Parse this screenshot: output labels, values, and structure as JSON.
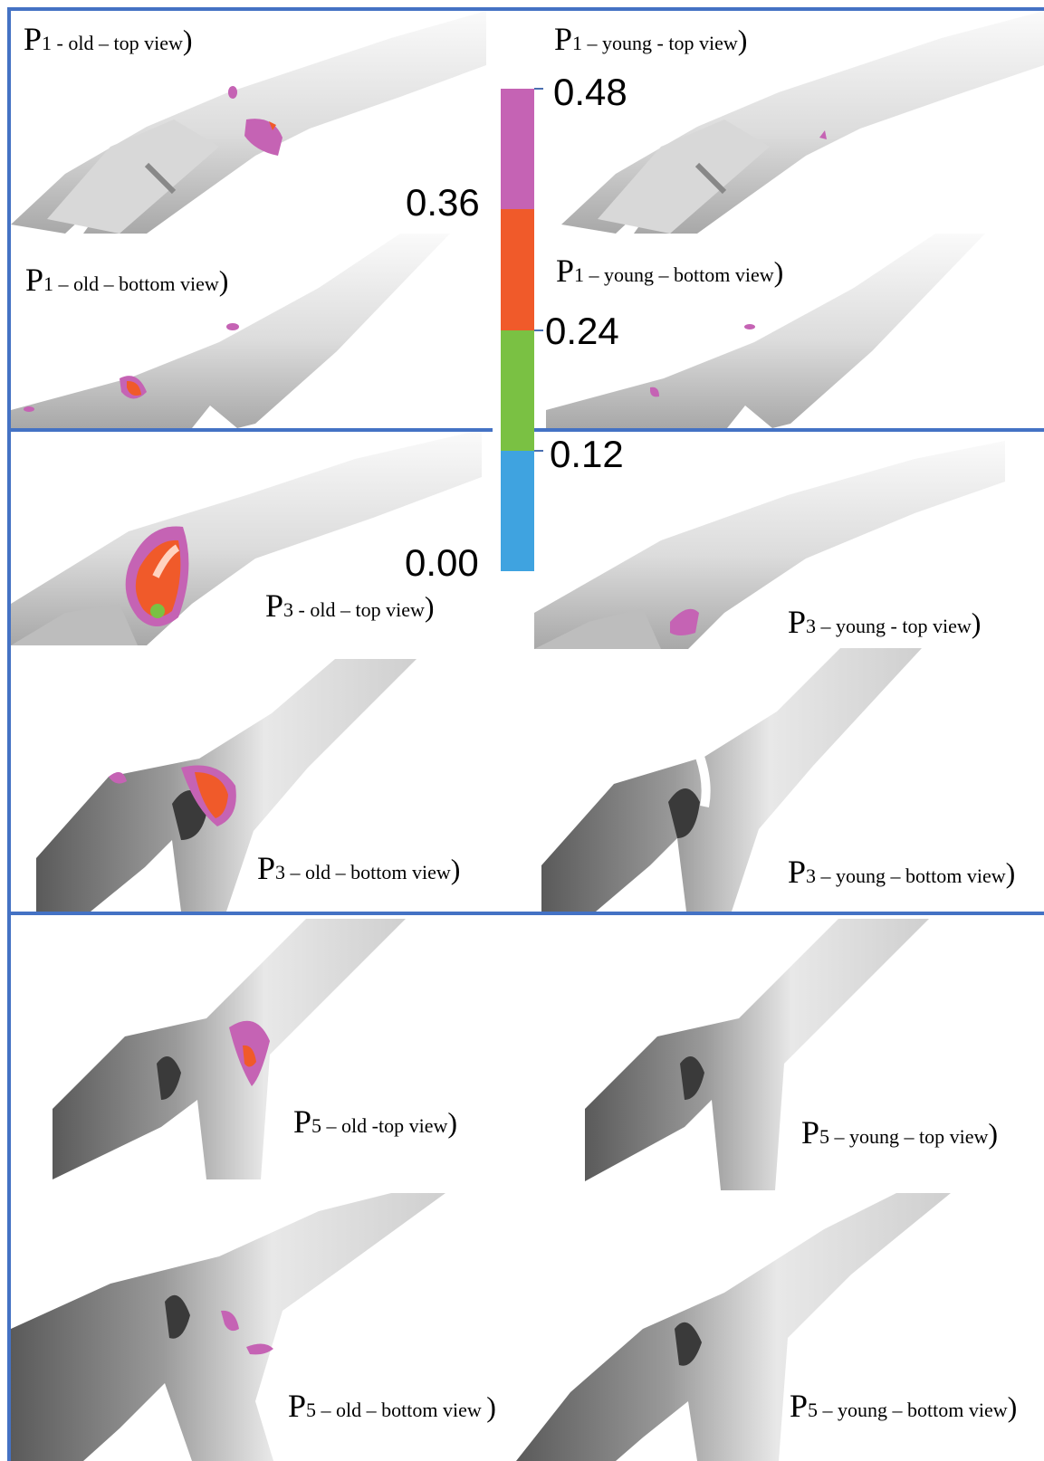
{
  "colorbar": {
    "ticks": [
      "0.48",
      "0.36",
      "0.24",
      "0.12",
      "0.00"
    ],
    "bins": [
      {
        "range": "0.36-0.48",
        "color": "#c563b4"
      },
      {
        "range": "0.24-0.36",
        "color": "#f05a2a"
      },
      {
        "range": "0.12-0.24",
        "color": "#7ac143"
      },
      {
        "range": "0.00-0.12",
        "color": "#3fa3e0"
      }
    ]
  },
  "frame_color": "#4472c4",
  "panels": [
    {
      "p": "P",
      "num": "1",
      "rest": " - old – top view",
      "close": ")"
    },
    {
      "p": "P",
      "num": "1",
      "rest": " – young - top view",
      "close": ")"
    },
    {
      "p": "P",
      "num": "1",
      "rest": " – old – bottom view",
      "close": ")"
    },
    {
      "p": "P",
      "num": "1",
      "rest": " – young – bottom view",
      "close": ")"
    },
    {
      "p": "P",
      "num": "3",
      "rest": " - old – top view",
      "close": ")"
    },
    {
      "p": "P",
      "num": "3",
      "rest": " – young - top view",
      "close": ")"
    },
    {
      "p": "P",
      "num": "3",
      "rest": " – old – bottom view",
      "close": ")"
    },
    {
      "p": "P",
      "num": "3",
      "rest": " – young – bottom view",
      "close": ")"
    },
    {
      "p": "P",
      "num": "5",
      "rest": " – old -top view",
      "close": ")"
    },
    {
      "p": "P",
      "num": "5",
      "rest": " – young – top view",
      "close": ")"
    },
    {
      "p": "P",
      "num": "5",
      "rest": " – old – bottom view ",
      "close": ")"
    },
    {
      "p": "P",
      "num": "5",
      "rest": " – young – bottom view",
      "close": ")"
    }
  ]
}
